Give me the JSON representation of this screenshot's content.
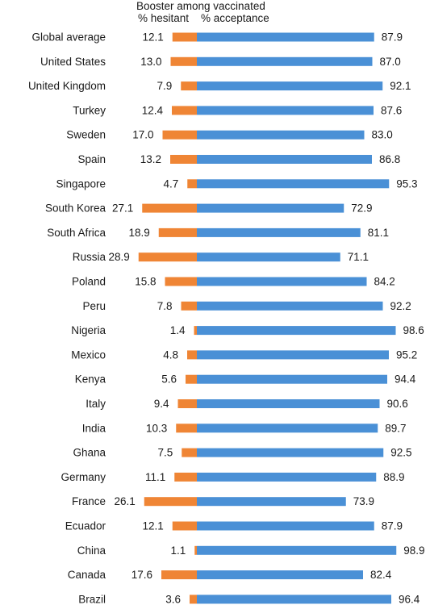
{
  "header": {
    "title": "Booster among vaccinated",
    "left_label": "% hesitant",
    "right_label": "% acceptance"
  },
  "chart_data": {
    "type": "bar",
    "orientation": "horizontal-diverging",
    "title": "Booster among vaccinated",
    "categories": [
      "Global average",
      "United States",
      "United Kingdom",
      "Turkey",
      "Sweden",
      "Spain",
      "Singapore",
      "South Korea",
      "South Africa",
      "Russia",
      "Poland",
      "Peru",
      "Nigeria",
      "Mexico",
      "Kenya",
      "Italy",
      "India",
      "Ghana",
      "Germany",
      "France",
      "Ecuador",
      "China",
      "Canada",
      "Brazil"
    ],
    "series": [
      {
        "name": "% hesitant",
        "color": "#ef8535",
        "direction": "left",
        "values": [
          12.1,
          13.0,
          7.9,
          12.4,
          17.0,
          13.2,
          4.7,
          27.1,
          18.9,
          28.9,
          15.8,
          7.8,
          1.4,
          4.8,
          5.6,
          9.4,
          10.3,
          7.5,
          11.1,
          26.1,
          12.1,
          1.1,
          17.6,
          3.6
        ],
        "labels": [
          "12.1",
          "13.0",
          "7.9",
          "12.4",
          "17.0",
          "13.2",
          "4.7",
          "27.1",
          "18.9",
          "28.9",
          "15.8",
          "7.8",
          "1.4",
          "4.8",
          "5.6",
          "9.4",
          "10.3",
          "7.5",
          "11.1",
          "26.1",
          "12.1",
          "1.1",
          "17.6",
          "3.6"
        ]
      },
      {
        "name": "% acceptance",
        "color": "#4a90d6",
        "direction": "right",
        "values": [
          87.9,
          87.0,
          92.1,
          87.6,
          83.0,
          86.8,
          95.3,
          72.9,
          81.1,
          71.1,
          84.2,
          92.2,
          98.6,
          95.2,
          94.4,
          90.6,
          89.7,
          92.5,
          88.9,
          73.9,
          87.9,
          98.9,
          82.4,
          96.4
        ],
        "labels": [
          "87.9",
          "87.0",
          "92.1",
          "87.6",
          "83.0",
          "86.8",
          "95.3",
          "72.9",
          "81.1",
          "71.1",
          "84.2",
          "92.2",
          "98.6",
          "95.2",
          "94.4",
          "90.6",
          "89.7",
          "92.5",
          "88.9",
          "73.9",
          "87.9",
          "98.9",
          "82.4",
          "96.4"
        ]
      }
    ],
    "xlim": [
      0,
      100
    ],
    "grid": false
  }
}
